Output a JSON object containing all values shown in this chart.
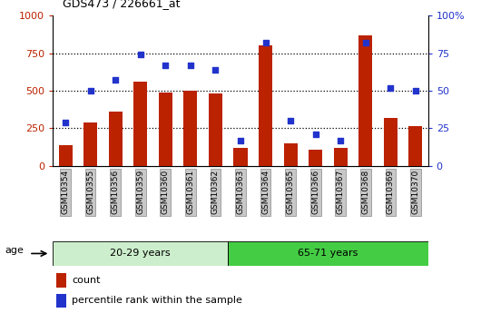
{
  "title": "GDS473 / 226661_at",
  "samples": [
    "GSM10354",
    "GSM10355",
    "GSM10356",
    "GSM10359",
    "GSM10360",
    "GSM10361",
    "GSM10362",
    "GSM10363",
    "GSM10364",
    "GSM10365",
    "GSM10366",
    "GSM10367",
    "GSM10368",
    "GSM10369",
    "GSM10370"
  ],
  "counts": [
    140,
    290,
    360,
    560,
    490,
    500,
    480,
    120,
    800,
    150,
    110,
    120,
    870,
    320,
    265
  ],
  "percentile_ranks": [
    29,
    50,
    57,
    74,
    67,
    67,
    64,
    17,
    82,
    30,
    21,
    17,
    82,
    52,
    50
  ],
  "group1_label": "20-29 years",
  "group2_label": "65-71 years",
  "group1_count": 7,
  "group2_count": 8,
  "bar_color": "#bb2200",
  "dot_color": "#2233cc",
  "group1_color": "#cceecc",
  "group2_color": "#44cc44",
  "tick_bg": "#c8c8c8",
  "ylim_left": [
    0,
    1000
  ],
  "ylim_right": [
    0,
    100
  ],
  "yticks_left": [
    0,
    250,
    500,
    750,
    1000
  ],
  "ytick_labels_left": [
    "0",
    "250",
    "500",
    "750",
    "1000"
  ],
  "yticks_right": [
    0,
    25,
    50,
    75,
    100
  ],
  "ytick_labels_right": [
    "0",
    "25",
    "50",
    "75",
    "100%"
  ],
  "legend_count_label": "count",
  "legend_pct_label": "percentile rank within the sample",
  "grid_lines": [
    250,
    500,
    750
  ]
}
